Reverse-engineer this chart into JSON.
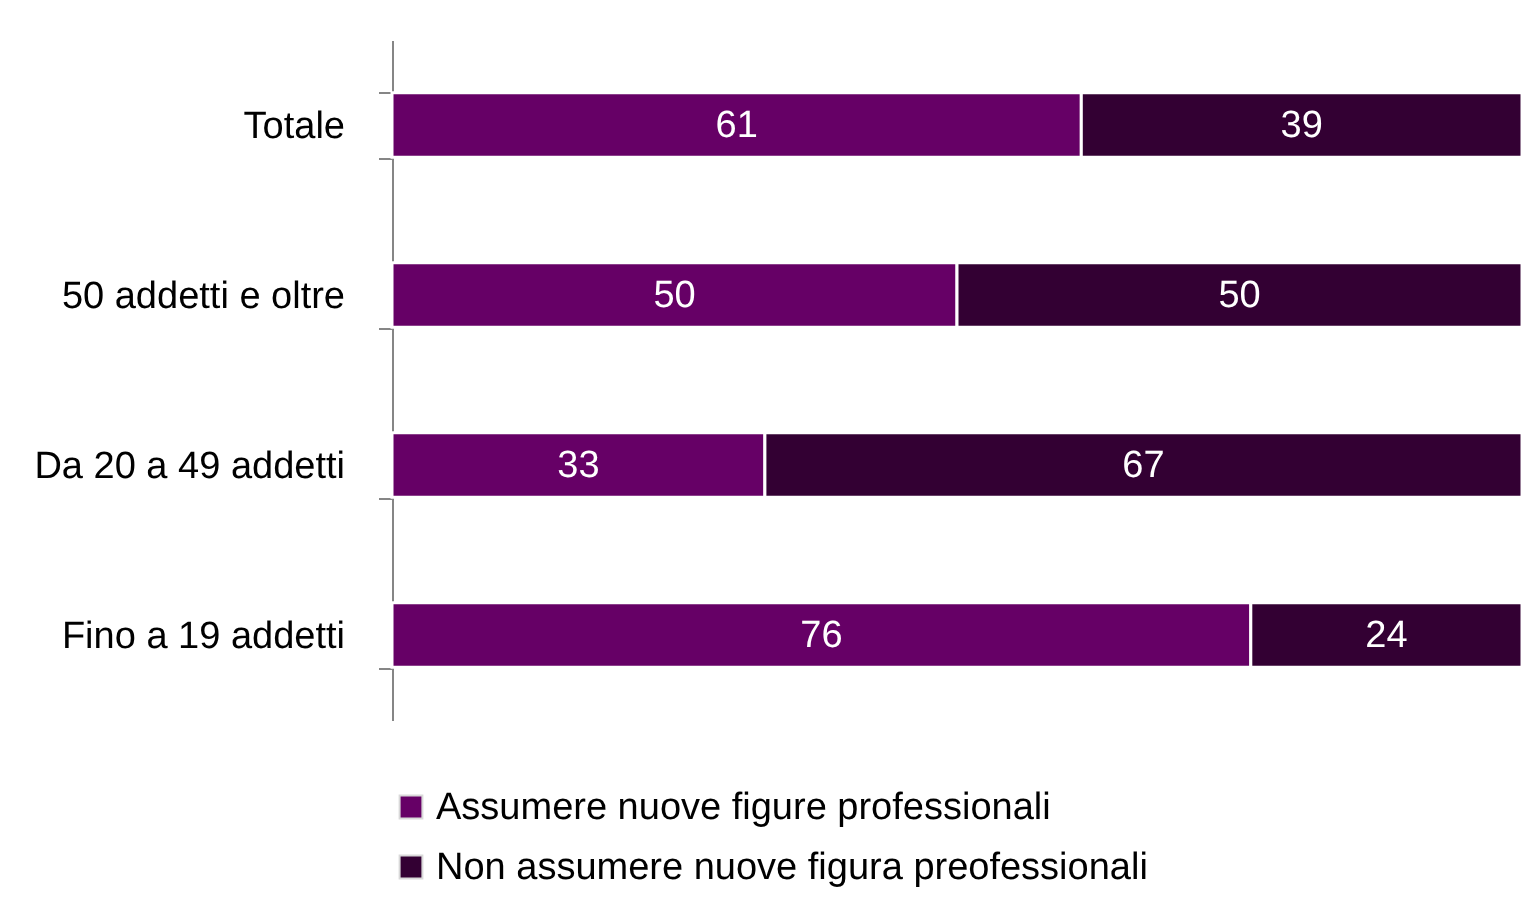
{
  "chart_data": {
    "type": "bar",
    "orientation": "horizontal",
    "stacked": true,
    "categories": [
      "Totale",
      "50 addetti e oltre",
      "Da 20 a 49 addetti",
      "Fino a 19 addetti"
    ],
    "series": [
      {
        "name": "Assumere nuove figure professionali",
        "color": "#660066",
        "values": [
          61,
          50,
          33,
          76
        ]
      },
      {
        "name": "Non assumere nuove figura preofessionali",
        "color": "#330033",
        "values": [
          39,
          50,
          67,
          24
        ]
      }
    ],
    "data_labels": true,
    "legend": "bottom"
  }
}
